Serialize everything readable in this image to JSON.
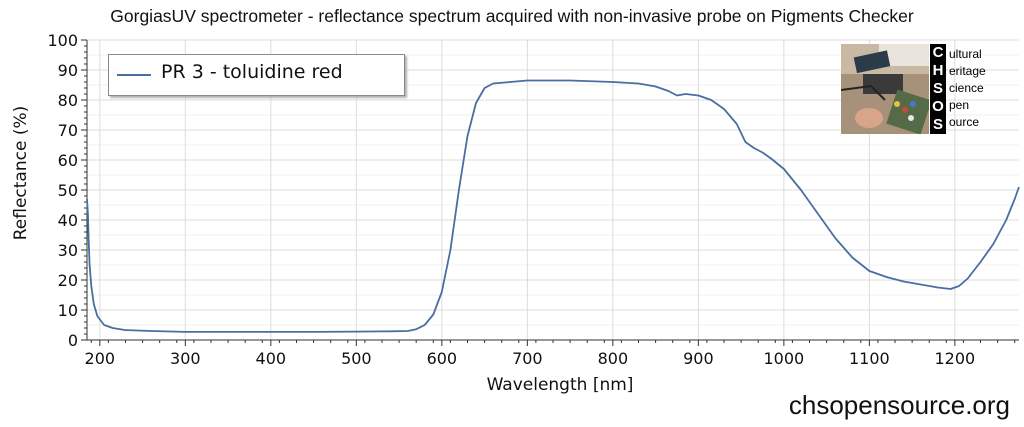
{
  "chart_data": {
    "type": "line",
    "title": "GorgiasUV spectrometer - reflectance spectrum acquired with non-invasive probe on Pigments Checker",
    "xlabel": "Wavelength [nm]",
    "ylabel": "Reflectance (%)",
    "xlim": [
      185,
      1275
    ],
    "ylim": [
      0,
      100
    ],
    "xticks": [
      200,
      300,
      400,
      500,
      600,
      700,
      800,
      900,
      1000,
      1100,
      1200
    ],
    "yticks": [
      0,
      10,
      20,
      30,
      40,
      50,
      60,
      70,
      80,
      90,
      100
    ],
    "grid": true,
    "legend_position": "top-left",
    "series": [
      {
        "name": "PR 3 - toluidine red",
        "color": "#4a6ea0",
        "points": [
          [
            185,
            47
          ],
          [
            186,
            42
          ],
          [
            187,
            33
          ],
          [
            188,
            25
          ],
          [
            190,
            18
          ],
          [
            193,
            12
          ],
          [
            197,
            8
          ],
          [
            205,
            5
          ],
          [
            215,
            4
          ],
          [
            230,
            3.3
          ],
          [
            260,
            3
          ],
          [
            300,
            2.7
          ],
          [
            350,
            2.7
          ],
          [
            400,
            2.7
          ],
          [
            450,
            2.7
          ],
          [
            500,
            2.8
          ],
          [
            540,
            2.9
          ],
          [
            560,
            3
          ],
          [
            570,
            3.6
          ],
          [
            580,
            5
          ],
          [
            590,
            8.5
          ],
          [
            600,
            16
          ],
          [
            610,
            30
          ],
          [
            620,
            50
          ],
          [
            630,
            68
          ],
          [
            640,
            79
          ],
          [
            650,
            84
          ],
          [
            660,
            85.5
          ],
          [
            680,
            86
          ],
          [
            700,
            86.5
          ],
          [
            750,
            86.5
          ],
          [
            800,
            86
          ],
          [
            830,
            85.5
          ],
          [
            850,
            84.5
          ],
          [
            865,
            83
          ],
          [
            875,
            81.5
          ],
          [
            885,
            82
          ],
          [
            900,
            81.5
          ],
          [
            915,
            80
          ],
          [
            930,
            77
          ],
          [
            945,
            72
          ],
          [
            955,
            66
          ],
          [
            965,
            64
          ],
          [
            975,
            62.5
          ],
          [
            985,
            60.5
          ],
          [
            1000,
            57
          ],
          [
            1020,
            50
          ],
          [
            1040,
            42
          ],
          [
            1060,
            34
          ],
          [
            1080,
            27.5
          ],
          [
            1100,
            23
          ],
          [
            1120,
            21
          ],
          [
            1140,
            19.5
          ],
          [
            1160,
            18.5
          ],
          [
            1180,
            17.5
          ],
          [
            1195,
            17
          ],
          [
            1205,
            18
          ],
          [
            1215,
            20.5
          ],
          [
            1230,
            26
          ],
          [
            1245,
            32
          ],
          [
            1260,
            40
          ],
          [
            1270,
            47
          ],
          [
            1275,
            51
          ]
        ]
      }
    ]
  },
  "watermark": "chsopensource.org",
  "logo": {
    "letters": [
      "C",
      "H",
      "S",
      "O",
      "S"
    ],
    "words": [
      "ultural",
      "eritage",
      "cience",
      "pen",
      "ource"
    ]
  }
}
